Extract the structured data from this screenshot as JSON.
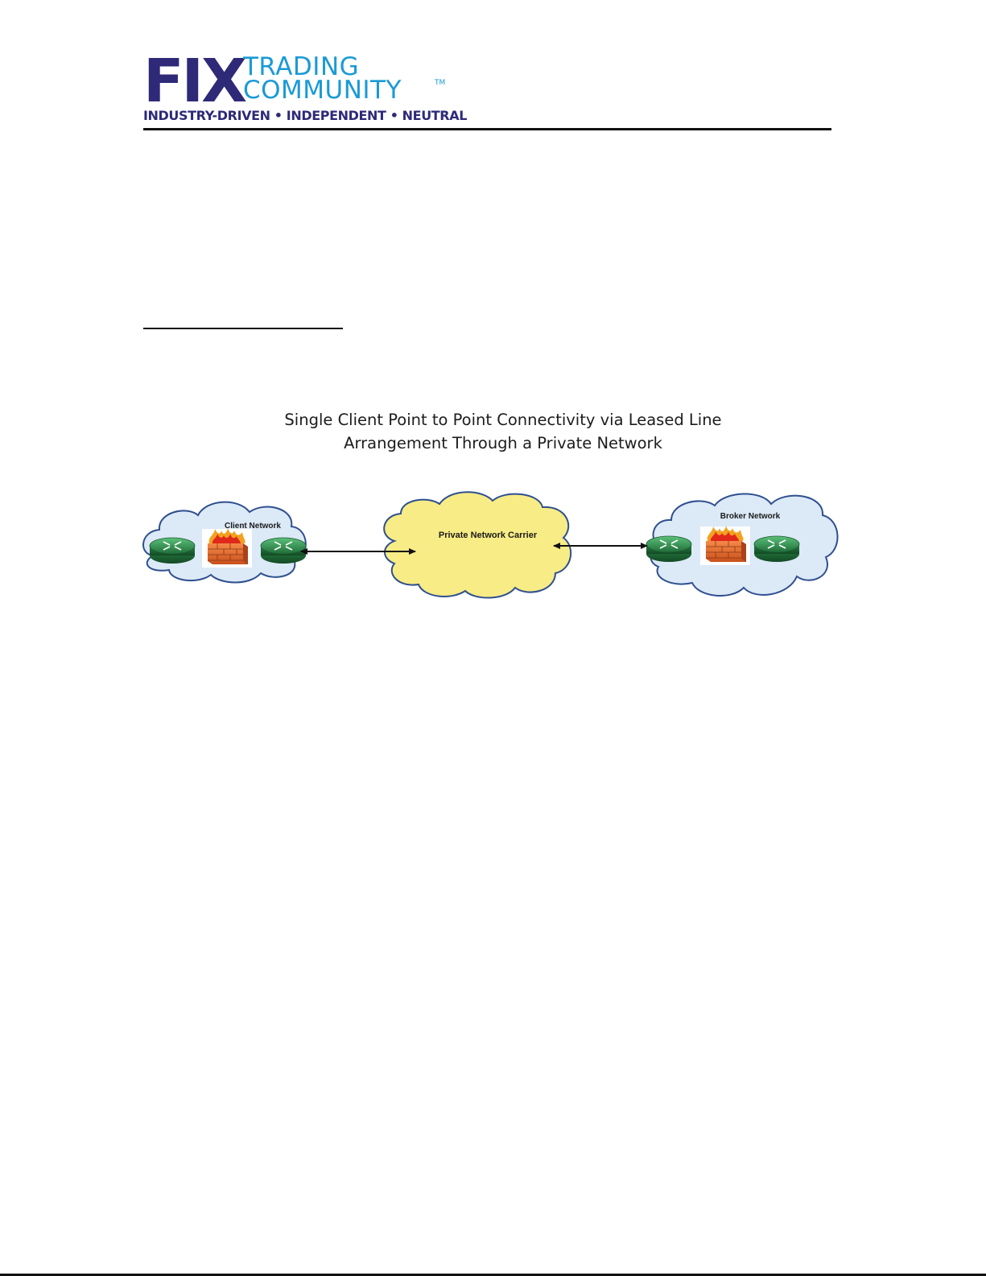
{
  "header": {
    "logo_word": "FIX",
    "logo_line1": "TRADING",
    "logo_line2": "COMMUNITY",
    "logo_tm": "TM",
    "tagline": "INDUSTRY-DRIVEN • INDEPENDENT • NEUTRAL"
  },
  "diagram": {
    "title_line1": "Single Client Point to Point Connectivity via Leased Line",
    "title_line2": "Arrangement Through a Private Network",
    "client_network_label": "Client Network",
    "carrier_label": "Private Network Carrier",
    "broker_network_label": "Broker Network",
    "colors": {
      "network_cloud_fill": "#dce9f7",
      "network_cloud_stroke": "#2f4f8f",
      "carrier_cloud_fill": "#f7ec85",
      "router": "#2f8f4a",
      "firewall": "#e8692a"
    }
  }
}
